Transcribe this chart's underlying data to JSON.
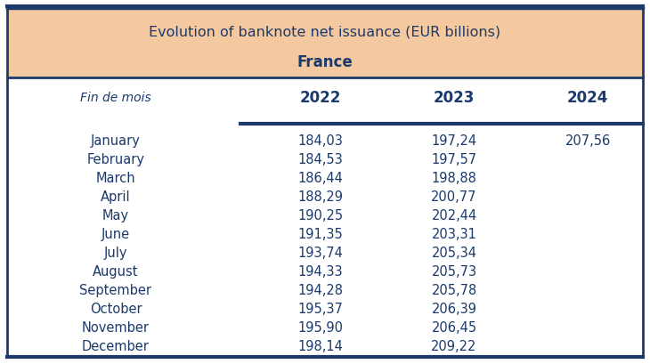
{
  "title_line1": "Evolution of banknote net issuance (EUR billions)",
  "title_line2": "France",
  "header_bg": "#F5C9A0",
  "border_color": "#1B3A6B",
  "header_label": "Fin de mois",
  "years": [
    "2022",
    "2023",
    "2024"
  ],
  "months": [
    "January",
    "February",
    "March",
    "April",
    "May",
    "June",
    "July",
    "August",
    "September",
    "October",
    "November",
    "December"
  ],
  "data_2022": [
    "184,03",
    "184,53",
    "186,44",
    "188,29",
    "190,25",
    "191,35",
    "193,74",
    "194,33",
    "194,28",
    "195,37",
    "195,90",
    "198,14"
  ],
  "data_2023": [
    "197,24",
    "197,57",
    "198,88",
    "200,77",
    "202,44",
    "203,31",
    "205,34",
    "205,73",
    "205,78",
    "206,39",
    "206,45",
    "209,22"
  ],
  "data_2024": [
    "207,56",
    "",
    "",
    "",
    "",
    "",
    "",
    "",
    "",
    "",
    "",
    ""
  ],
  "text_color": "#1B3A6B",
  "fig_bg": "#FFFFFF"
}
